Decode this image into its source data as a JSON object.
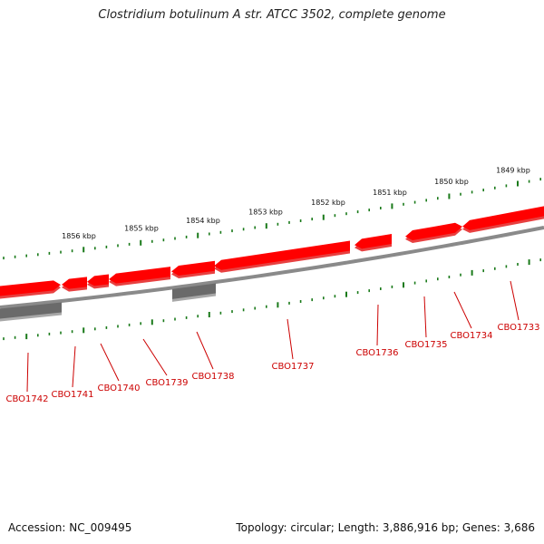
{
  "title": "Clostridium botulinum A str. ATCC 3502, complete genome",
  "footer": {
    "accession": "Accession: NC_009495",
    "summary": "Topology: circular; Length: 3,886,916 bp; Genes: 3,686"
  },
  "colors": {
    "gene_forward": "#ff0000",
    "gene_shade": "#e84040",
    "gene_other": "#6a6a6a",
    "backbone": "#8a8a8a",
    "ticks": "#1a7a1a",
    "label": "#cc0000"
  },
  "kbp_markers": [
    "1856 kbp",
    "1855 kbp",
    "1854 kbp",
    "1853 kbp",
    "1852 kbp",
    "1851 kbp",
    "1850 kbp",
    "1849 kbp"
  ],
  "genes": [
    {
      "id": "CBO1733",
      "label": "CBO1733"
    },
    {
      "id": "CBO1734",
      "label": "CBO1734"
    },
    {
      "id": "CBO1735",
      "label": "CBO1735"
    },
    {
      "id": "CBO1736",
      "label": "CBO1736"
    },
    {
      "id": "CBO1737",
      "label": "CBO1737"
    },
    {
      "id": "CBO1738",
      "label": "CBO1738"
    },
    {
      "id": "CBO1739",
      "label": "CBO1739"
    },
    {
      "id": "CBO1740",
      "label": "CBO1740"
    },
    {
      "id": "CBO1741",
      "label": "CBO1741"
    },
    {
      "id": "CBO1742",
      "label": "CBO1742"
    }
  ]
}
